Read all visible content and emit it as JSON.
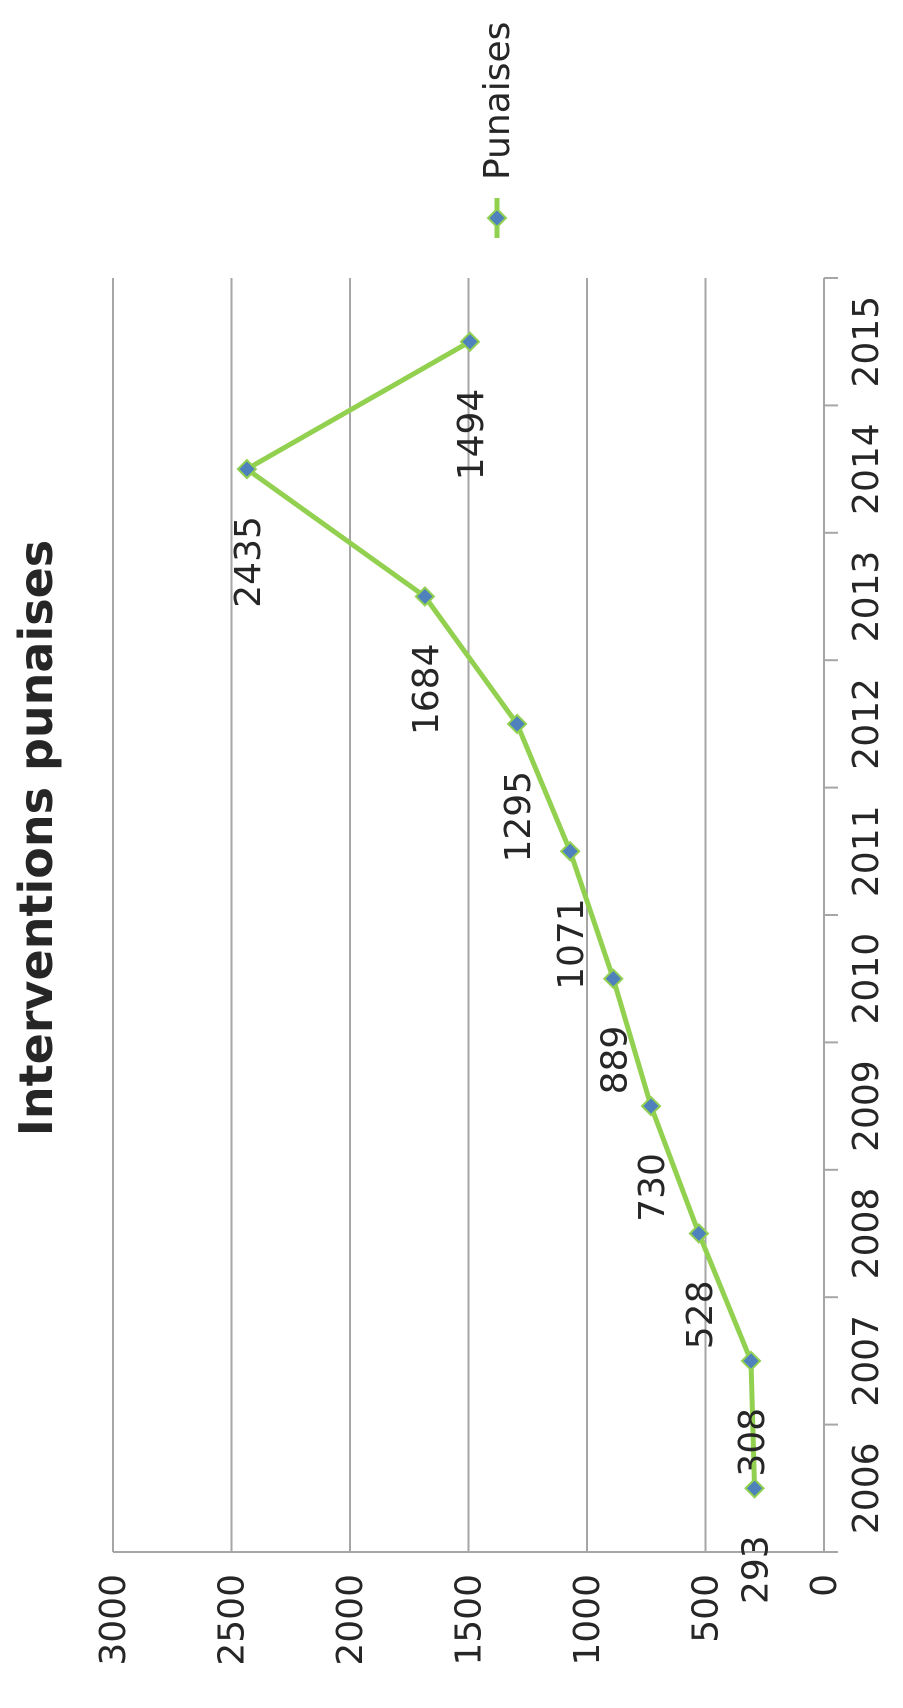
{
  "chart_data": {
    "type": "line",
    "title": "Interventions punaises",
    "xlabel": "",
    "ylabel": "",
    "categories": [
      "2006",
      "2007",
      "2008",
      "2009",
      "2010",
      "2011",
      "2012",
      "2013",
      "2014",
      "2015"
    ],
    "series": [
      {
        "name": "Punaises",
        "values": [
          293,
          308,
          528,
          730,
          889,
          1071,
          1295,
          1684,
          2435,
          1494
        ],
        "line_color": "#92D050",
        "marker_color": "#4F81BD",
        "marker": "diamond"
      }
    ],
    "yticks": [
      "0",
      "500",
      "1000",
      "1500",
      "2000",
      "2500",
      "3000"
    ],
    "ylim": [
      0,
      3000
    ],
    "grid": true,
    "legend_position": "right",
    "data_labels": true,
    "orientation": "rotated 90° clockwise"
  }
}
